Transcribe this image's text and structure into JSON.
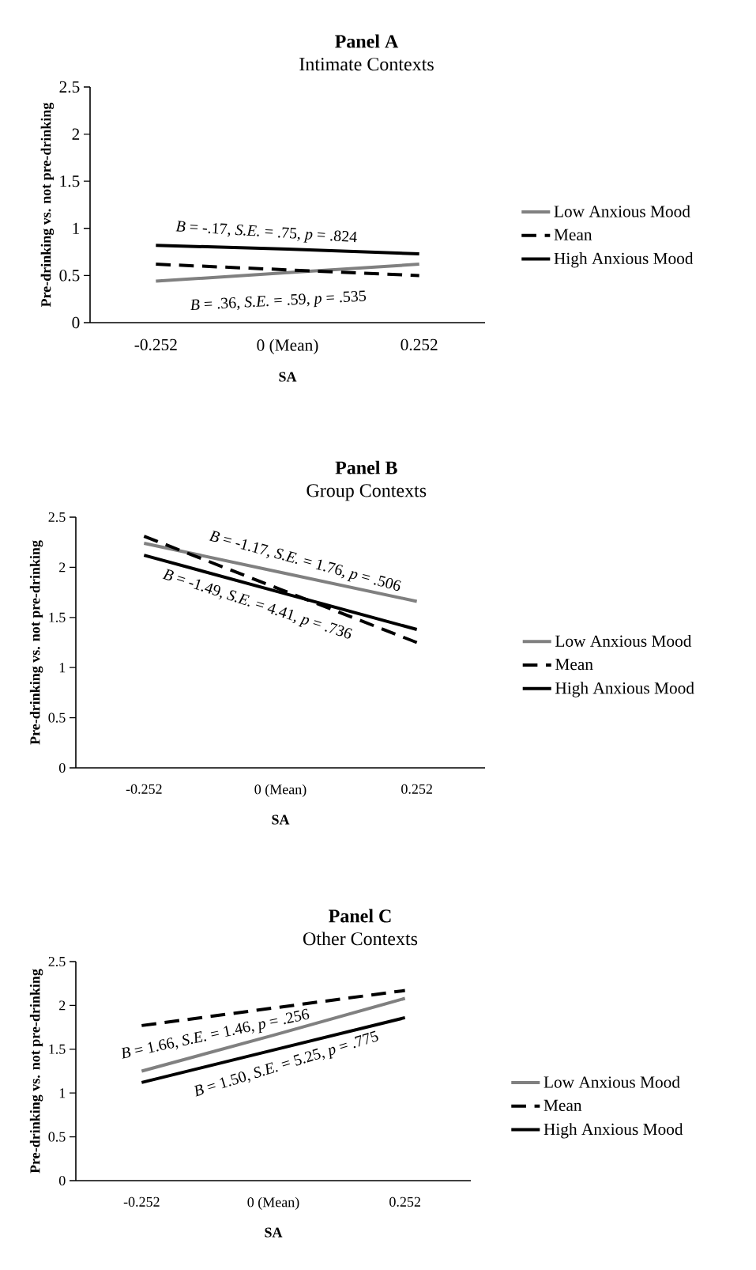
{
  "chart_data": [
    {
      "type": "line",
      "title": "Panel A",
      "subtitle": "Intimate Contexts",
      "xlabel": "SA",
      "ylabel": "Pre-drinking vs. not pre-drinking",
      "categories": [
        "-0.252",
        "0 (Mean)",
        "0.252"
      ],
      "series": [
        {
          "name": "Low Anxious Mood",
          "color": "#808080",
          "line_style": "solid",
          "values": [
            0.44,
            0.53,
            0.62
          ]
        },
        {
          "name": "Mean",
          "color": "#000000",
          "line_style": "dashed",
          "values": [
            0.62,
            0.56,
            0.5
          ]
        },
        {
          "name": "High Anxious Mood",
          "color": "#000000",
          "line_style": "solid",
          "values": [
            0.82,
            0.78,
            0.73
          ]
        }
      ],
      "ylim": [
        0,
        2.5
      ],
      "yticks": [
        0,
        0.5,
        1,
        1.5,
        2,
        2.5
      ],
      "legend": "right",
      "annotations": [
        "*B* = -.17, *S.E.* = .75, *p* = .824",
        "*B* = .36, *S.E.* = .59, *p* = .535"
      ]
    },
    {
      "type": "line",
      "title": "Panel B",
      "subtitle": "Group Contexts",
      "xlabel": "SA",
      "ylabel": "Pre-drinking vs. not pre-drinking",
      "categories": [
        "-0.252",
        "0 (Mean)",
        "0.252"
      ],
      "series": [
        {
          "name": "Low Anxious Mood",
          "color": "#808080",
          "line_style": "solid",
          "values": [
            2.24,
            1.95,
            1.66
          ]
        },
        {
          "name": "Mean",
          "color": "#000000",
          "line_style": "dashed",
          "values": [
            2.31,
            1.78,
            1.25
          ]
        },
        {
          "name": "High Anxious Mood",
          "color": "#000000",
          "line_style": "solid",
          "values": [
            2.12,
            1.75,
            1.38
          ]
        }
      ],
      "ylim": [
        0,
        2.5
      ],
      "yticks": [
        0,
        0.5,
        1,
        1.5,
        2,
        2.5
      ],
      "legend": "right",
      "annotations": [
        "*B* = -1.17, *S.E.* = 1.76, *p* = .506",
        "*B* = -1.49, *S.E.* = 4.41, *p* = .736"
      ]
    },
    {
      "type": "line",
      "title": "Panel C",
      "subtitle": "Other Contexts",
      "xlabel": "SA",
      "ylabel": "Pre-drinking vs. not pre-drinking",
      "categories": [
        "-0.252",
        "0 (Mean)",
        "0.252"
      ],
      "series": [
        {
          "name": "Low Anxious Mood",
          "color": "#808080",
          "line_style": "solid",
          "values": [
            1.25,
            1.66,
            2.08
          ]
        },
        {
          "name": "Mean",
          "color": "#000000",
          "line_style": "dashed",
          "values": [
            1.77,
            1.97,
            2.17
          ]
        },
        {
          "name": "High Anxious Mood",
          "color": "#000000",
          "line_style": "solid",
          "values": [
            1.12,
            1.49,
            1.86
          ]
        }
      ],
      "ylim": [
        0,
        2.5
      ],
      "yticks": [
        0,
        0.5,
        1,
        1.5,
        2,
        2.5
      ],
      "legend": "right",
      "annotations": [
        "*B* = 1.66, *S.E.* = 1.46, *p* = .256",
        "*B* = 1.50, *S.E.* = 5.25, *p* = .775"
      ]
    }
  ]
}
